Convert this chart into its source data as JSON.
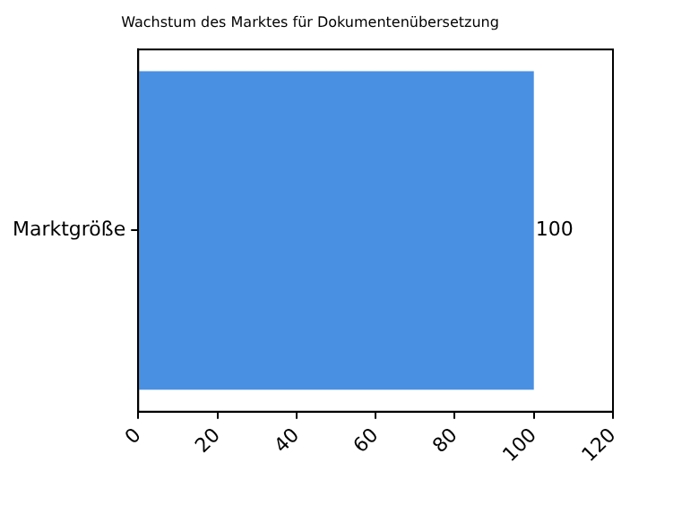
{
  "chart_data": {
    "type": "bar",
    "orientation": "horizontal",
    "title": "Wachstum des Marktes für Dokumentenübersetzung",
    "categories": [
      "Marktgröße"
    ],
    "values": [
      100
    ],
    "color": "#4a90e2",
    "xlim": [
      0,
      120
    ],
    "xticks": [
      0,
      20,
      40,
      60,
      80,
      100,
      120
    ],
    "data_labels": true,
    "grid": false,
    "legend": false
  }
}
